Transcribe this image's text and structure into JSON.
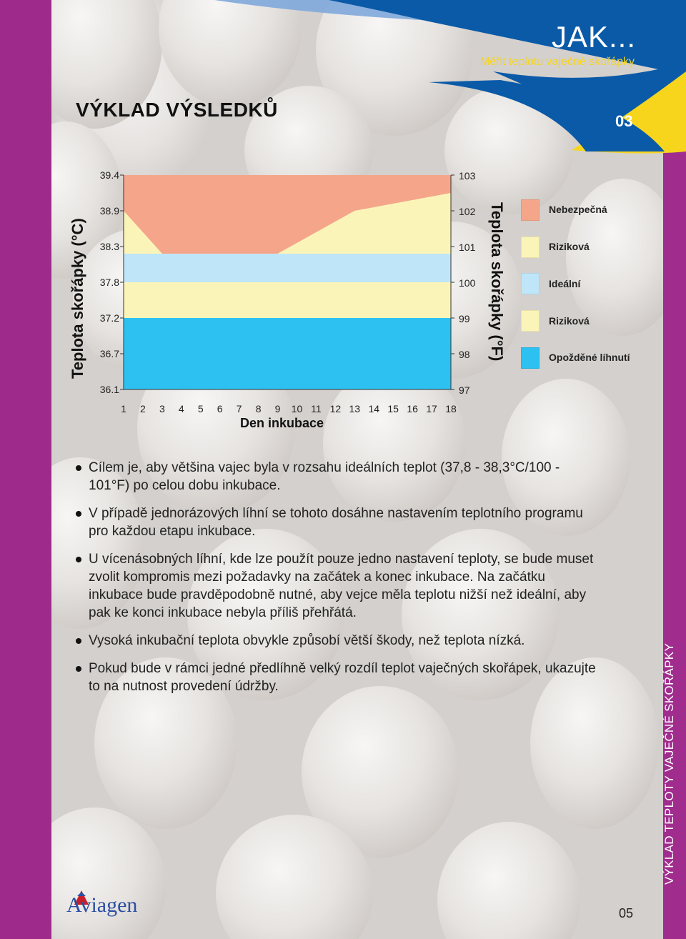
{
  "header": {
    "section_title": "VÝKLAD VÝSLEDKŮ",
    "jak": "JAK...",
    "jak_subtitle": "Měřit teplotu vaječné skořápky",
    "chapter_number": "03"
  },
  "colors": {
    "purple": "#9e2b8c",
    "blue": "#0a5aa8",
    "yellow": "#f7d51d",
    "danger": "#f5a68a",
    "risky": "#fbf4b8",
    "ideal": "#bfe6f8",
    "late": "#2cc1f0"
  },
  "chart_data": {
    "type": "area",
    "xlabel": "Den inkubace",
    "ylabel_left": "Teplota skořápky (°C)",
    "ylabel_right": "Teplota skořápky (°F)",
    "x": [
      1,
      2,
      3,
      4,
      5,
      6,
      7,
      8,
      9,
      10,
      11,
      12,
      13,
      14,
      15,
      16,
      17,
      18
    ],
    "left_ticks": [
      "39.4",
      "38.9",
      "38.3",
      "37.8",
      "37.2",
      "36.7",
      "36.1"
    ],
    "right_ticks": [
      "103",
      "102",
      "101",
      "100",
      "99",
      "98",
      "97"
    ],
    "ylim_c": [
      36.1,
      39.4
    ],
    "ylim_f": [
      97,
      103
    ],
    "boundaries": {
      "upper_risky_top_f": [
        102,
        101.4,
        100.8,
        100.8,
        100.8,
        100.8,
        100.8,
        100.8,
        100.8,
        101.1,
        101.4,
        101.7,
        102,
        102.1,
        102.2,
        102.3,
        102.4,
        102.5
      ],
      "ideal_top_f": [
        100.8,
        100.8,
        100.8,
        100.8,
        100.8,
        100.8,
        100.8,
        100.8,
        100.8,
        100.8,
        100.8,
        100.8,
        100.8,
        100.8,
        100.8,
        100.8,
        100.8,
        100.8
      ],
      "ideal_bottom_f": [
        100,
        100,
        100,
        100,
        100,
        100,
        100,
        100,
        100,
        100,
        100,
        100,
        100,
        100,
        100,
        100,
        100,
        100
      ],
      "lower_risky_bottom_f": [
        100,
        99.8,
        99.3,
        99.3,
        99.3,
        99.3,
        99.3,
        99.3,
        99.3,
        99.3,
        99.3,
        99.3,
        99.3,
        99.3,
        99.3,
        99.3,
        99.3,
        99.3
      ],
      "late_top_f": [
        99,
        99,
        99,
        99,
        99,
        99,
        99,
        99,
        99,
        99,
        99,
        99,
        99,
        99,
        99,
        99,
        99,
        99
      ]
    },
    "legend": [
      {
        "label": "Nebezpečná",
        "color": "#f5a68a"
      },
      {
        "label": "Riziková",
        "color": "#fbf4b8"
      },
      {
        "label": "Ideální",
        "color": "#bfe6f8"
      },
      {
        "label": "Riziková",
        "color": "#fbf4b8"
      },
      {
        "label": "Opožděné líhnutí",
        "color": "#2cc1f0"
      }
    ]
  },
  "bullets": [
    "Cílem je, aby většina vajec byla v rozsahu ideálních teplot (37,8 - 38,3°C/100 - 101°F) po celou dobu inkubace.",
    "V případě jednorázových líhní se tohoto dosáhne nastavením teplotního programu pro každou etapu inkubace.",
    "U vícenásobných líhní, kde lze použít pouze jedno nastavení teploty, se bude muset zvolit kompromis mezi požadavky na začátek a konec inkubace. Na začátku inkubace bude pravděpodobně nutné, aby vejce měla teplotu nižší než ideální, aby pak ke konci inkubace nebyla příliš přehřátá.",
    "Vysoká inkubační teplota obvykle způsobí větší škody, než teplota nízká.",
    "Pokud bude v rámci jedné předlíhně velký rozdíl teplot vaječných skořápek, ukazujte to na nutnost provedení údržby."
  ],
  "side_text": "VÝKLAD TEPLOTY VAJEČNÉ SKOŘÁPKY",
  "footer": {
    "page_number": "05",
    "logo": "Aviagen"
  }
}
